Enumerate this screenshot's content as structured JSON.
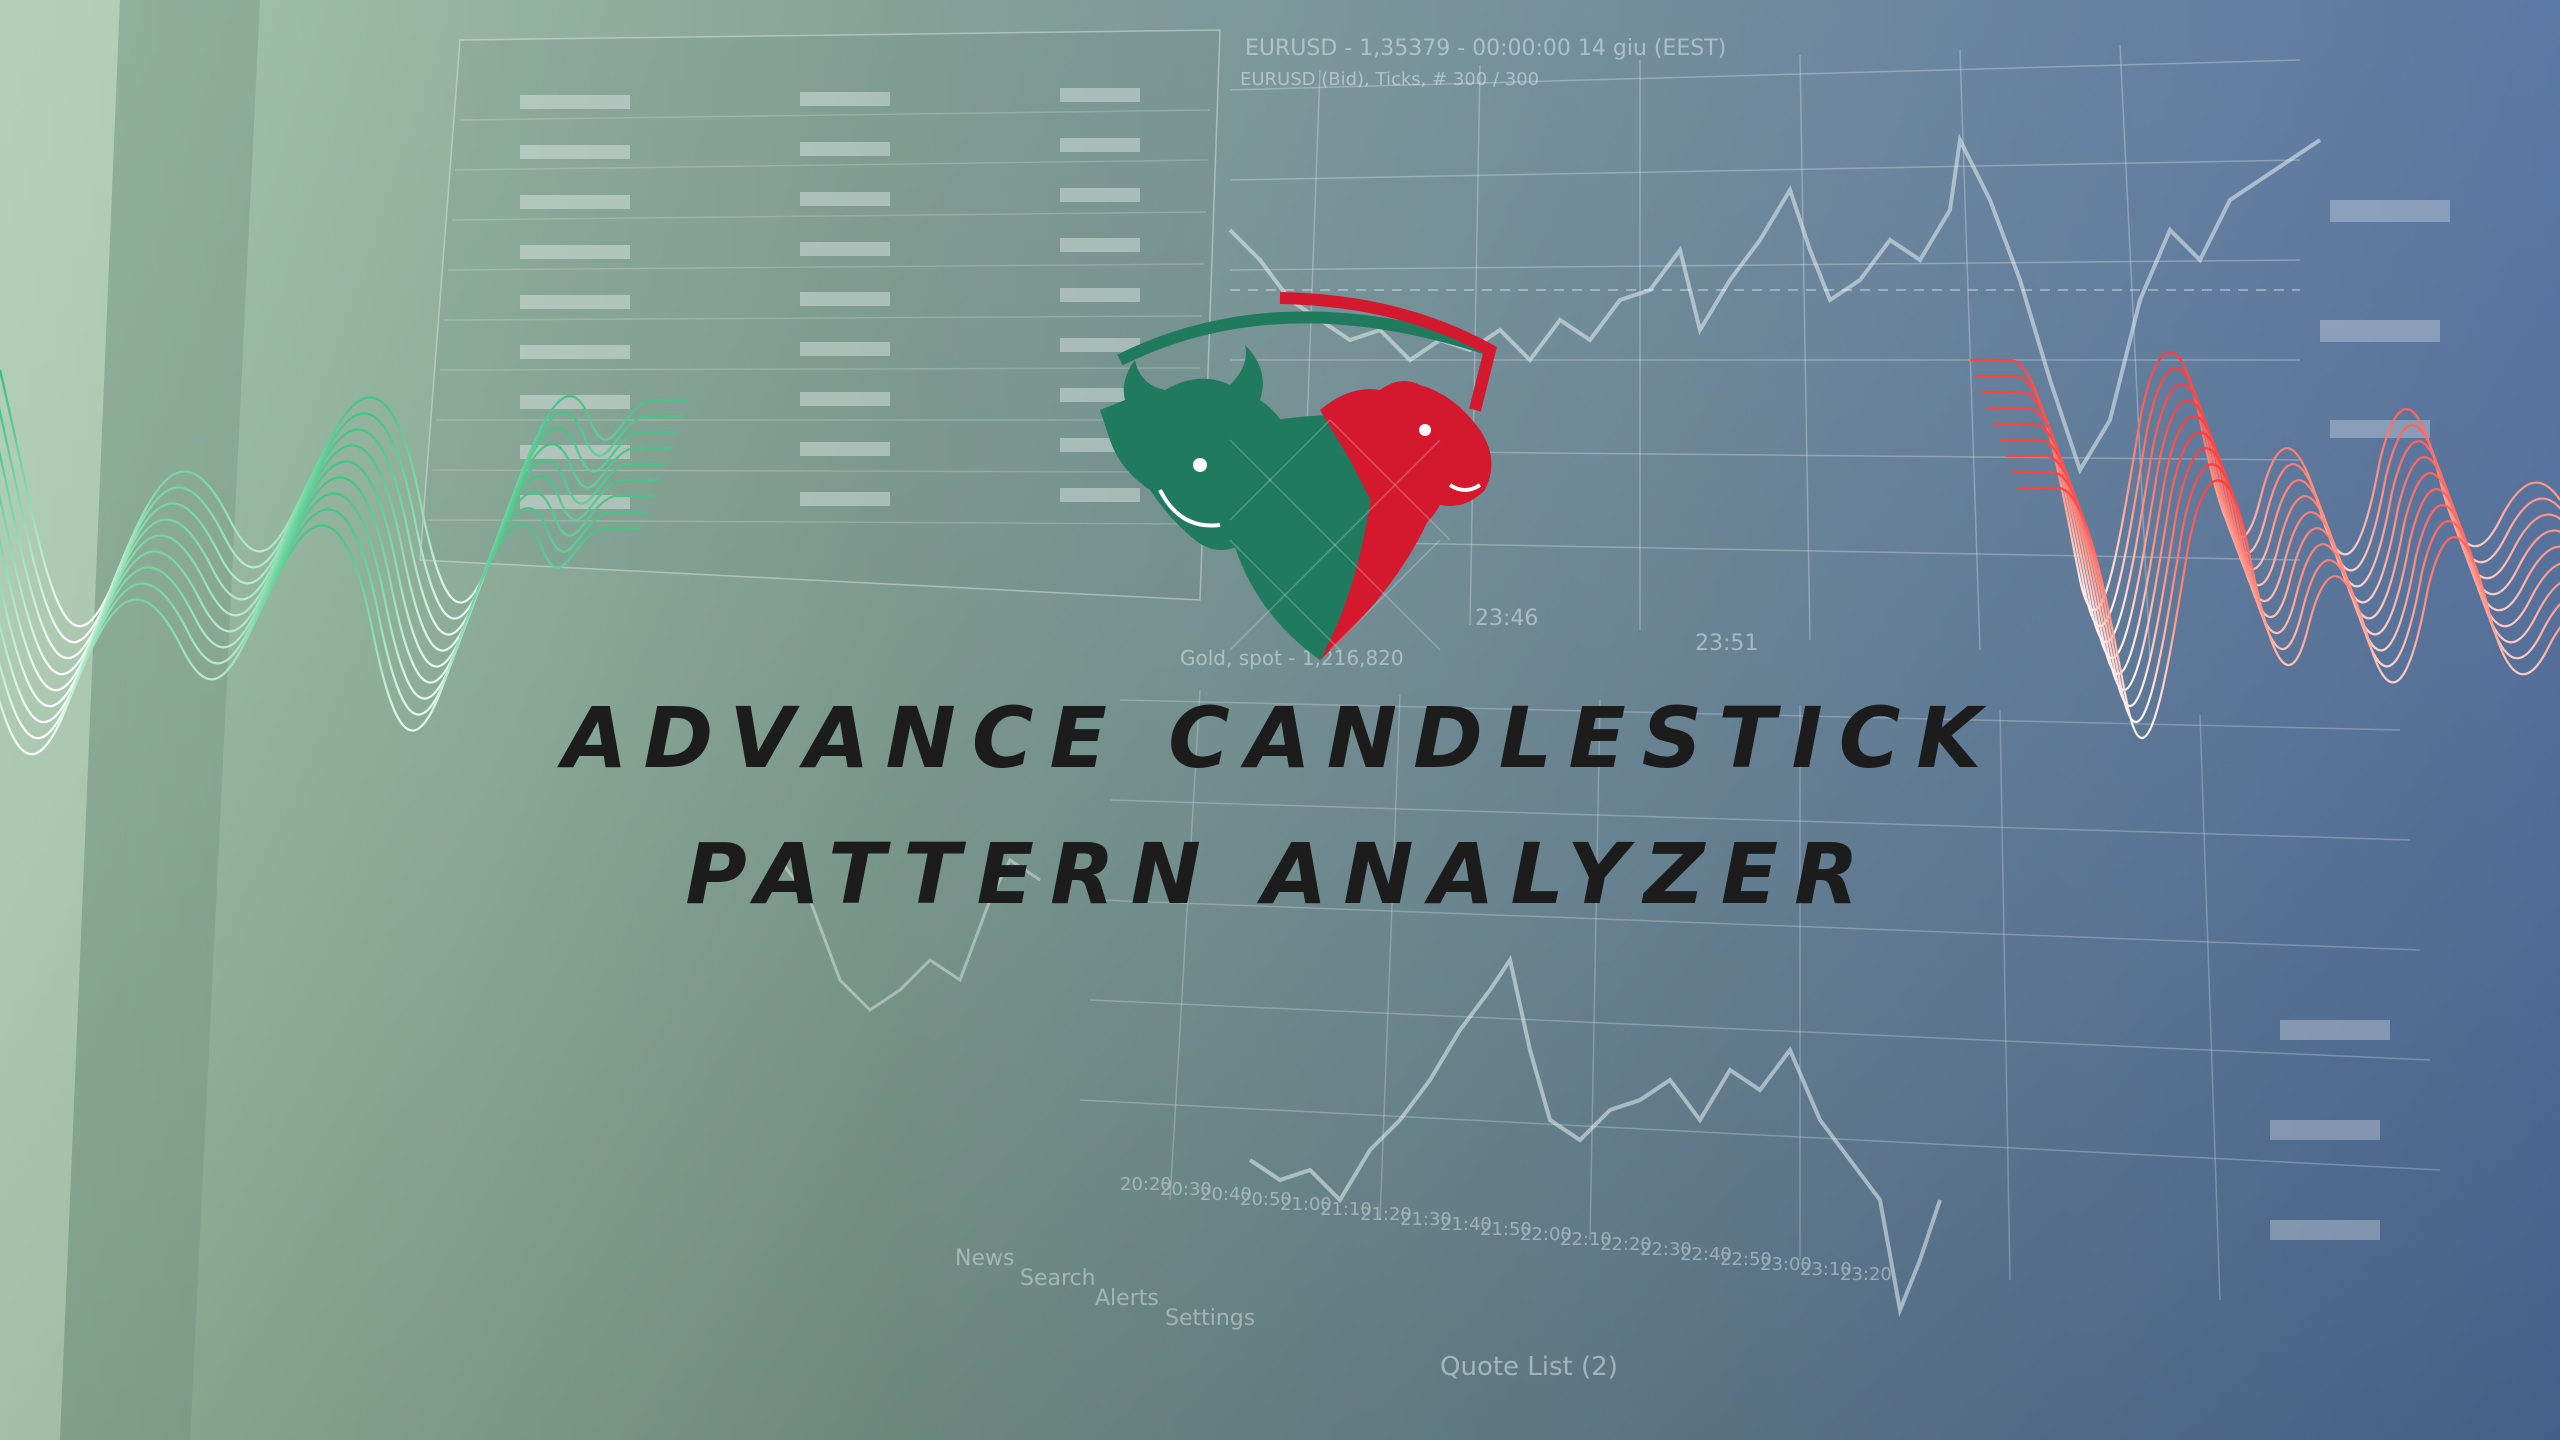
{
  "banner": {
    "title_line1": "ADVANCE CANDLESTICK",
    "title_line2": "PATTERN ANALYZER"
  },
  "background_screen": {
    "chart_header_top": "EURUSD - 1,35379 - 00:00:00  14 giu (EEST)",
    "chart_subheader_top": "EURUSD (Bid), Ticks, # 300 / 300",
    "chart_header_bottom": "Gold, spot - 1,216,820",
    "time_labels_top": [
      "23:46",
      "23:51"
    ],
    "time_labels_bottom": [
      "20:20",
      "20:30",
      "20:40",
      "20:50",
      "21:00",
      "21:10",
      "21:20",
      "21:30",
      "21:40",
      "21:50",
      "22:00",
      "22:10",
      "22:20",
      "22:30",
      "22:40",
      "22:50",
      "23:00",
      "23:10",
      "23:20"
    ],
    "tabs_bottom": [
      "News",
      "Search",
      "Alerts",
      "Settings"
    ],
    "quote_list_label": "Quote List (2)"
  },
  "logo": {
    "icon": "bull-bear-shield-icon",
    "colors": {
      "bull": "#1f7a5e",
      "bear": "#d4192f"
    }
  },
  "colors": {
    "gradient_left": "#8fb89a",
    "gradient_right": "#4d6a9a",
    "title": "#1c1c1c",
    "wave_green": "#2fbf7a",
    "wave_red": "#ff4a4a"
  }
}
